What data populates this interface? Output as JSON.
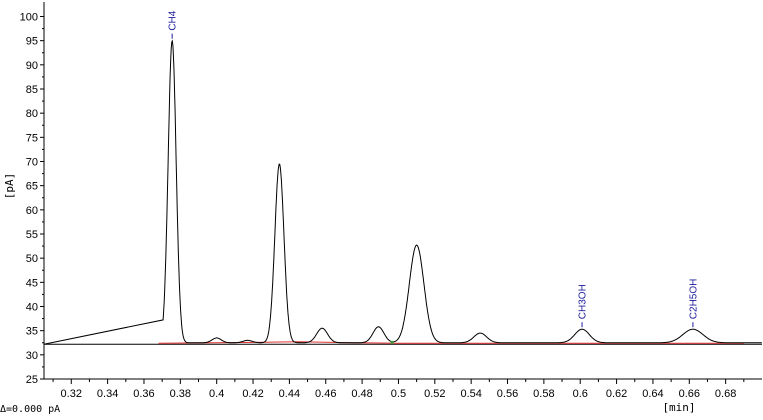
{
  "chart_data": {
    "type": "line",
    "xlabel": "[min]",
    "ylabel": "[pA]",
    "xlim": [
      0.305,
      0.7
    ],
    "ylim": [
      25,
      103
    ],
    "x_ticks": [
      0.32,
      0.34,
      0.36,
      0.38,
      0.4,
      0.42,
      0.44,
      0.46,
      0.48,
      0.5,
      0.52,
      0.54,
      0.56,
      0.58,
      0.6,
      0.62,
      0.64,
      0.66,
      0.68
    ],
    "x_tick_labels": [
      "0.32",
      "0.34",
      "0.36",
      "0.38",
      "0.4",
      "0.42",
      "0.44",
      "0.46",
      "0.48",
      "0.5",
      "0.52",
      "0.54",
      "0.56",
      "0.58",
      "0.6",
      "0.62",
      "0.64",
      "0.66",
      "0.68"
    ],
    "y_ticks": [
      25,
      30,
      35,
      40,
      45,
      50,
      55,
      60,
      65,
      70,
      75,
      80,
      85,
      90,
      95,
      100
    ],
    "y_tick_labels": [
      "25",
      "30",
      "35",
      "40",
      "45",
      "50",
      "55",
      "60",
      "65",
      "70",
      "75",
      "80",
      "85",
      "90",
      "95",
      "100"
    ],
    "reference_line_y": 32.2,
    "signal_baseline": 32.5,
    "peaks": [
      {
        "x": 0.3755,
        "height": 62.5,
        "width": 0.0022,
        "label": "CH4"
      },
      {
        "x": 0.4,
        "height": 1.0,
        "width": 0.0025,
        "label": ""
      },
      {
        "x": 0.417,
        "height": 0.5,
        "width": 0.0025,
        "label": ""
      },
      {
        "x": 0.4345,
        "height": 37.0,
        "width": 0.0025,
        "label": ""
      },
      {
        "x": 0.458,
        "height": 3.0,
        "width": 0.003,
        "label": ""
      },
      {
        "x": 0.489,
        "height": 3.3,
        "width": 0.003,
        "label": ""
      },
      {
        "x": 0.51,
        "height": 20.2,
        "width": 0.004,
        "label": ""
      },
      {
        "x": 0.545,
        "height": 2.0,
        "width": 0.0035,
        "label": ""
      },
      {
        "x": 0.601,
        "height": 2.8,
        "width": 0.004,
        "label": "CH3OH"
      },
      {
        "x": 0.662,
        "height": 2.8,
        "width": 0.0055,
        "label": "C2H5OH"
      }
    ],
    "integration_baseline": [
      [
        0.368,
        32.4
      ],
      [
        0.425,
        32.6
      ],
      [
        0.445,
        32.7
      ],
      [
        0.475,
        32.5
      ],
      [
        0.5,
        32.4
      ],
      [
        0.56,
        32.4
      ],
      [
        0.6,
        32.4
      ],
      [
        0.69,
        32.4
      ]
    ],
    "colors": {
      "signal": "#000000",
      "reference_line": "#000000",
      "integration_baseline": "#e03030",
      "peak_label": "#1a1a9a",
      "marker": "#30a030"
    },
    "grid": false,
    "legend": "none"
  },
  "status_text": "Δ=0.000 pA"
}
